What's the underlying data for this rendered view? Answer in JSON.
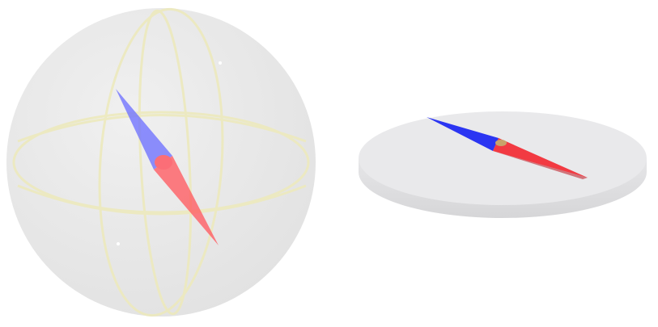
{
  "scene": {
    "background": "#ffffff",
    "objects": [
      {
        "name": "sphere-compass",
        "icon": "sphere-compass-icon",
        "sphere_fill": "#e7e7e7",
        "meridian_color": "#ece9bd",
        "needle_north_color": "#6f71ff",
        "needle_south_color": "#ff5a60",
        "pivot_color": "#ff4b56"
      },
      {
        "name": "disc-compass",
        "icon": "disc-compass-icon",
        "disc_top_color": "#e8e8ea",
        "disc_edge_color": "#dcdcde",
        "needle_north_color": "#2b35f2",
        "needle_south_color": "#f23a42",
        "pivot_color": "#c8a36a"
      }
    ]
  }
}
